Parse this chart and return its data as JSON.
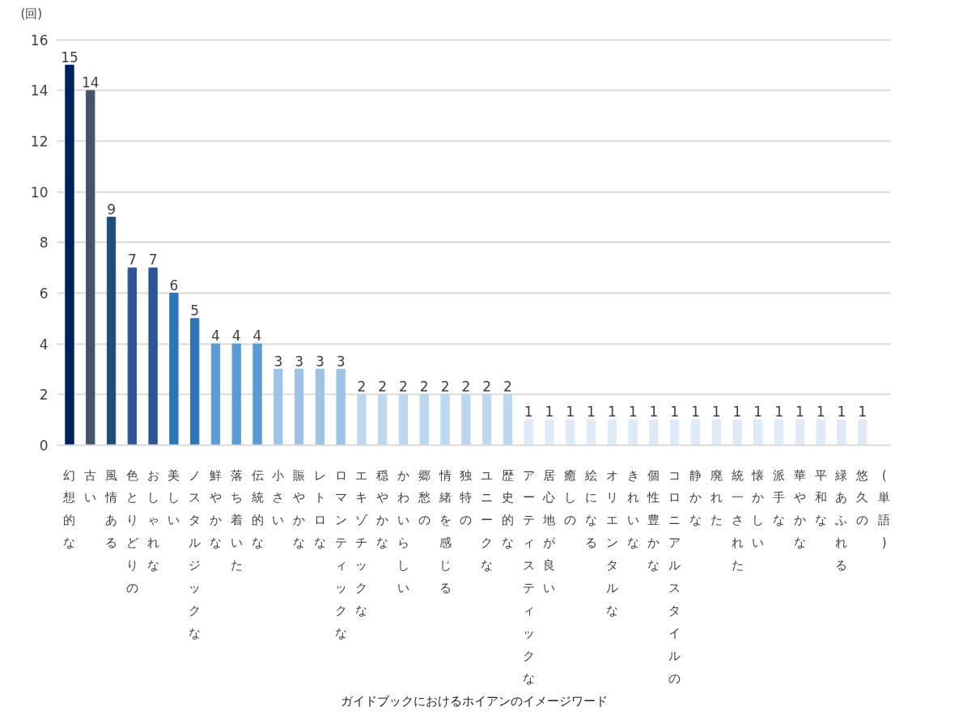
{
  "chart_data": {
    "type": "bar",
    "title": "ガイドブックにおけるホイアンのイメージワード",
    "xlabel": "(単語)",
    "ylabel": "(回)",
    "categories": [
      "幻想的な",
      "古い",
      "風情ある",
      "色とりどりの",
      "おしゃれな",
      "美しい",
      "ノスタルジックな",
      "鮮やかな",
      "落ち着いた",
      "伝統的な",
      "小さい",
      "賑やかな",
      "レトロな",
      "ロマンティックな",
      "エキゾチックな",
      "穏やかな",
      "かわいらしい",
      "郷愁の",
      "情緒を感じる",
      "独特の",
      "ユニークな",
      "歴史的な",
      "アーティスティックな",
      "居心地が良い",
      "癒しの",
      "絵になる",
      "オリエンタルな",
      "きれいな",
      "個性豊かな",
      "コロニアルスタイルの",
      "静かな",
      "廃れた",
      "統一された",
      "懐かしい",
      "派手な",
      "華やかな",
      "平和な",
      "緑あふれる",
      "悠久の"
    ],
    "values": [
      15,
      14,
      9,
      7,
      7,
      6,
      5,
      4,
      4,
      4,
      3,
      3,
      3,
      3,
      2,
      2,
      2,
      2,
      2,
      2,
      2,
      2,
      1,
      1,
      1,
      1,
      1,
      1,
      1,
      1,
      1,
      1,
      1,
      1,
      1,
      1,
      1,
      1,
      1
    ],
    "colors": [
      "#002060",
      "#44546a",
      "#1f4e79",
      "#2f5597",
      "#2f5597",
      "#2e75b6",
      "#2e75b6",
      "#5b9bd5",
      "#5b9bd5",
      "#5b9bd5",
      "#9dc3e6",
      "#9dc3e6",
      "#9dc3e6",
      "#9dc3e6",
      "#bdd7ee",
      "#bdd7ee",
      "#bdd7ee",
      "#bdd7ee",
      "#bdd7ee",
      "#bdd7ee",
      "#bdd7ee",
      "#bdd7ee",
      "#deebf7",
      "#deebf7",
      "#deebf7",
      "#deebf7",
      "#deebf7",
      "#deebf7",
      "#deebf7",
      "#deebf7",
      "#deebf7",
      "#deebf7",
      "#deebf7",
      "#deebf7",
      "#deebf7",
      "#deebf7",
      "#deebf7",
      "#deebf7",
      "#deebf7"
    ],
    "ylim": [
      0,
      16
    ],
    "yticks": [
      0,
      2,
      4,
      6,
      8,
      10,
      12,
      14,
      16
    ],
    "grid": "y",
    "data_labels": true
  }
}
